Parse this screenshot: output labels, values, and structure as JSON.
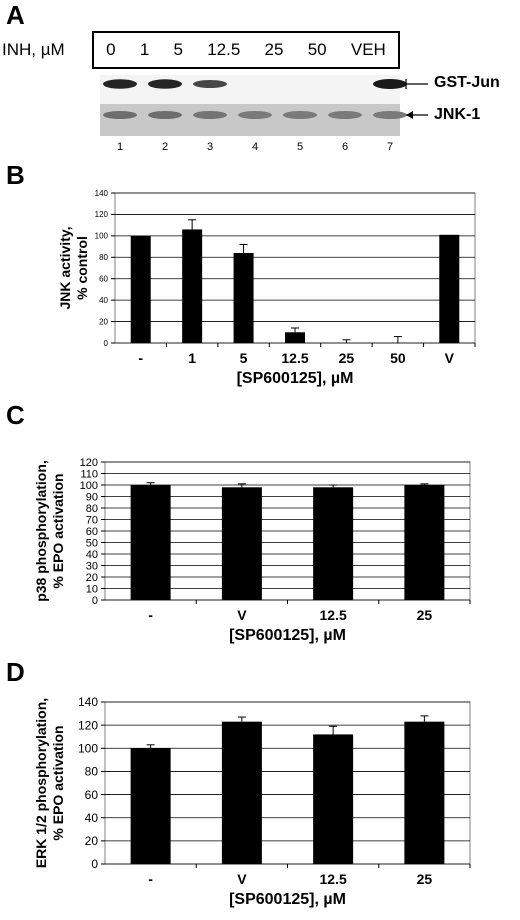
{
  "panelA": {
    "letter": "A",
    "inh_label": "INH, µM",
    "lanes": [
      "0",
      "1",
      "5",
      "12.5",
      "25",
      "50",
      "VEH"
    ],
    "band1_label": "GST-Jun",
    "band2_label": "JNK-1",
    "lane_numbers": [
      "1",
      "2",
      "3",
      "4",
      "5",
      "6",
      "7"
    ],
    "gst_jun_intensity": [
      0.95,
      0.95,
      0.8,
      0.05,
      0,
      0,
      1.0
    ],
    "jnk1_intensity": [
      0.7,
      0.7,
      0.65,
      0.6,
      0.6,
      0.6,
      0.6
    ]
  },
  "chart_data": [
    {
      "letter": "B",
      "type": "bar",
      "categories": [
        "-",
        "1",
        "5",
        "12.5",
        "25",
        "50",
        "V"
      ],
      "values": [
        100,
        106,
        84,
        10,
        0,
        0,
        101
      ],
      "errors": [
        0,
        9,
        8,
        4,
        3,
        6,
        0
      ],
      "ylim": [
        0,
        140
      ],
      "yticks": [
        0,
        20,
        40,
        60,
        80,
        100,
        120,
        140
      ],
      "ylabel_lines": [
        "JNK activity,",
        "% control"
      ],
      "xlabel": "[SP600125], µM",
      "grid": true
    },
    {
      "letter": "C",
      "type": "bar",
      "categories": [
        "-",
        "V",
        "12.5",
        "25"
      ],
      "values": [
        100,
        98,
        98,
        100
      ],
      "errors": [
        2,
        3,
        2,
        1
      ],
      "ylim": [
        0,
        120
      ],
      "yticks": [
        0,
        10,
        20,
        30,
        40,
        50,
        60,
        70,
        80,
        90,
        100,
        110,
        120
      ],
      "ylabel_lines": [
        "p38 phosphorylation,",
        "% EPO activation"
      ],
      "xlabel": "[SP600125], µM",
      "grid": true
    },
    {
      "letter": "D",
      "type": "bar",
      "categories": [
        "-",
        "V",
        "12.5",
        "25"
      ],
      "values": [
        100,
        123,
        112,
        123
      ],
      "errors": [
        3,
        4,
        7,
        5
      ],
      "ylim": [
        0,
        140
      ],
      "yticks": [
        0,
        20,
        40,
        60,
        80,
        100,
        120,
        140
      ],
      "ylabel_lines": [
        "ERK 1/2 phosphorylation,",
        "% EPO activation"
      ],
      "xlabel": "[SP600125], µM",
      "grid": true
    }
  ]
}
